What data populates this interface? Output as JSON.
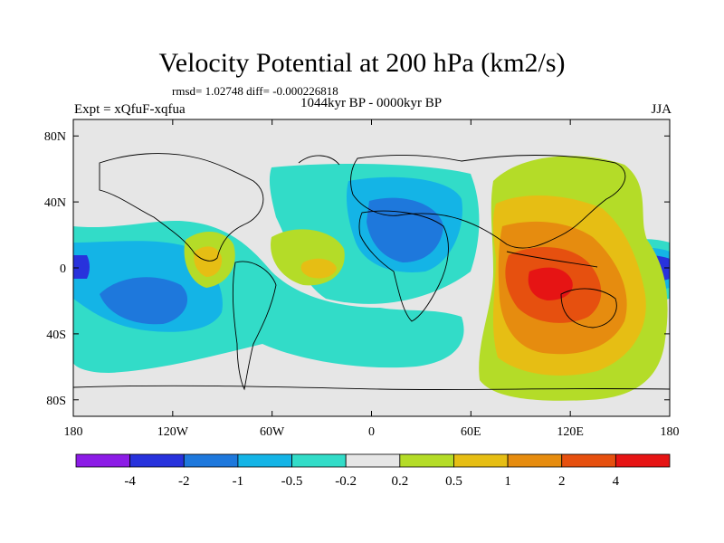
{
  "title": "Velocity Potential at 200 hPa (km2/s)",
  "stats_line": "rmsd= 1.02748 diff= -0.000226818",
  "period": "1044kyr BP - 0000kyr BP",
  "expt": "Expt = xQfuF-xqfua",
  "season": "JJA",
  "map": {
    "lon_range": [
      -180,
      180
    ],
    "lat_range": [
      -90,
      90
    ],
    "x_ticks": [
      {
        "lon": -180,
        "label": "180"
      },
      {
        "lon": -120,
        "label": "120W"
      },
      {
        "lon": -60,
        "label": "60W"
      },
      {
        "lon": 0,
        "label": "0"
      },
      {
        "lon": 60,
        "label": "60E"
      },
      {
        "lon": 120,
        "label": "120E"
      },
      {
        "lon": 180,
        "label": "180"
      }
    ],
    "y_ticks": [
      {
        "lat": 80,
        "label": "80N"
      },
      {
        "lat": 40,
        "label": "40N"
      },
      {
        "lat": 0,
        "label": "0"
      },
      {
        "lat": -40,
        "label": "40S"
      },
      {
        "lat": -80,
        "label": "80S"
      }
    ],
    "background_color": "#e6e6e6"
  },
  "colorbar": {
    "colors": [
      "#8c1ce6",
      "#2832dc",
      "#1e78dc",
      "#14b4e6",
      "#32dcc8",
      "#e6e6e6",
      "#b4dc28",
      "#e6be14",
      "#e68c0f",
      "#e6500f",
      "#e61414"
    ],
    "labels": [
      "-4",
      "-2",
      "-1",
      "-0.5",
      "-0.2",
      "0.2",
      "0.5",
      "1",
      "2",
      "4"
    ]
  }
}
